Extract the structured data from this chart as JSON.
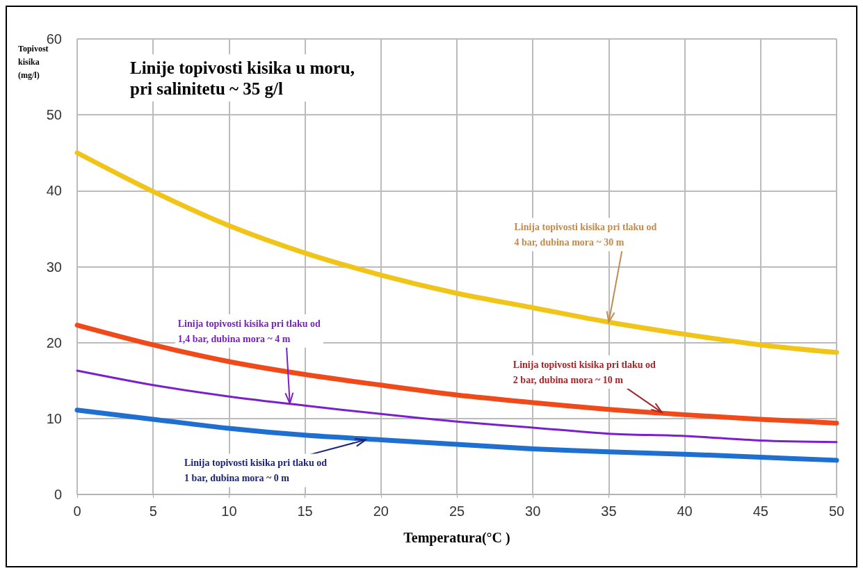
{
  "chart_data": {
    "type": "line",
    "title": "Linije topivosti kisika u moru,\npri salinitetu ~ 35 g/l",
    "xlabel": "Temperatura(°C )",
    "ylabel": "Topivost\nkisika\n(mg/l)",
    "x": [
      0,
      5,
      10,
      15,
      20,
      25,
      30,
      35,
      40,
      45,
      50
    ],
    "series": [
      {
        "color": "#f0c419",
        "values": [
          45.0,
          39.9,
          35.4,
          31.8,
          28.9,
          26.5,
          24.6,
          22.7,
          21.1,
          19.7,
          18.7
        ]
      },
      {
        "color": "#f04a1a",
        "values": [
          22.3,
          19.7,
          17.5,
          15.8,
          14.4,
          13.1,
          12.1,
          11.2,
          10.5,
          9.9,
          9.4
        ]
      },
      {
        "color": "#7a1fd0",
        "values": [
          16.3,
          14.4,
          12.9,
          11.7,
          10.6,
          9.6,
          8.8,
          8.0,
          7.7,
          7.1,
          6.9
        ]
      },
      {
        "color": "#1f6fd0",
        "values": [
          11.1,
          9.9,
          8.7,
          7.8,
          7.2,
          6.6,
          6.0,
          5.6,
          5.3,
          4.9,
          4.5
        ]
      }
    ],
    "annotations": [
      {
        "text": "Linija topivosti kisika pri tlaku od\n4 bar, dubina mora ~ 30 m",
        "x": 35,
        "y": 22.7
      },
      {
        "text": "Linija topivosti kisika pri tlaku od\n1,4 bar, dubina mora ~ 4 m",
        "x": 14,
        "y": 12
      },
      {
        "text": "Linija topivosti kisika pri tlaku od\n2 bar, dubina mora ~ 10 m",
        "x": 38.5,
        "y": 10.8
      },
      {
        "text": "Linija topivosti kisika pri tlaku od\n1 bar, dubina mora ~ 0 m",
        "x": 19,
        "y": 7.2
      }
    ],
    "xlim": [
      0,
      50
    ],
    "xticks": [
      0,
      5,
      10,
      15,
      20,
      25,
      30,
      35,
      40,
      45,
      50
    ],
    "ylim": [
      0,
      60
    ],
    "yticks": [
      0,
      10,
      20,
      30,
      40,
      50,
      60
    ],
    "grid": true,
    "marker": "none",
    "line_style": "solid"
  }
}
